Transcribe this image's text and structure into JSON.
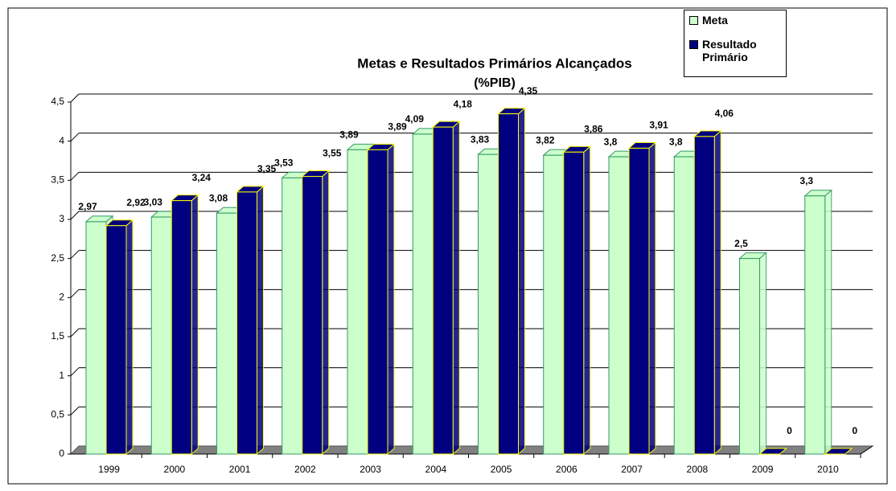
{
  "chart_data": {
    "type": "bar3d",
    "title": "Metas e Resultados Primários Alcançados",
    "subtitle": "(%PIB)",
    "categories": [
      "1999",
      "2000",
      "2001",
      "2002",
      "2003",
      "2004",
      "2005",
      "2006",
      "2007",
      "2008",
      "2009",
      "2010"
    ],
    "series": [
      {
        "name": "Meta",
        "color": "#ccffcc",
        "edge": "#339966",
        "values": [
          2.97,
          3.03,
          3.08,
          3.53,
          3.89,
          4.09,
          3.83,
          3.82,
          3.8,
          3.8,
          2.5,
          3.3
        ],
        "value_labels": [
          "2,97",
          "3,03",
          "3,08",
          "3,53",
          "3,89",
          "4,09",
          "3,83",
          "3,82",
          "3,8",
          "3,8",
          "2,5",
          "3,3"
        ]
      },
      {
        "name": "Resultado Primário",
        "color": "#000080",
        "edge": "#ffff00",
        "values": [
          2.92,
          3.24,
          3.35,
          3.55,
          3.89,
          4.18,
          4.35,
          3.86,
          3.91,
          4.06,
          0,
          0
        ],
        "value_labels": [
          "2,92",
          "3,24",
          "3,35",
          "3,55",
          "3,89",
          "4,18",
          "4,35",
          "3,86",
          "3,91",
          "4,06",
          "0",
          "0"
        ]
      }
    ],
    "ylim": [
      0,
      4.5
    ],
    "yticks": [
      0,
      {
        "value": 0.5,
        "label": "0,5"
      },
      1,
      {
        "value": 1.5,
        "label": "1,5"
      },
      2,
      {
        "value": 2.5,
        "label": "2,5"
      },
      3,
      {
        "value": 3.5,
        "label": "3,5"
      },
      4,
      {
        "value": 4.5,
        "label": "4,5"
      }
    ],
    "grid": true,
    "legend": "top-right"
  }
}
